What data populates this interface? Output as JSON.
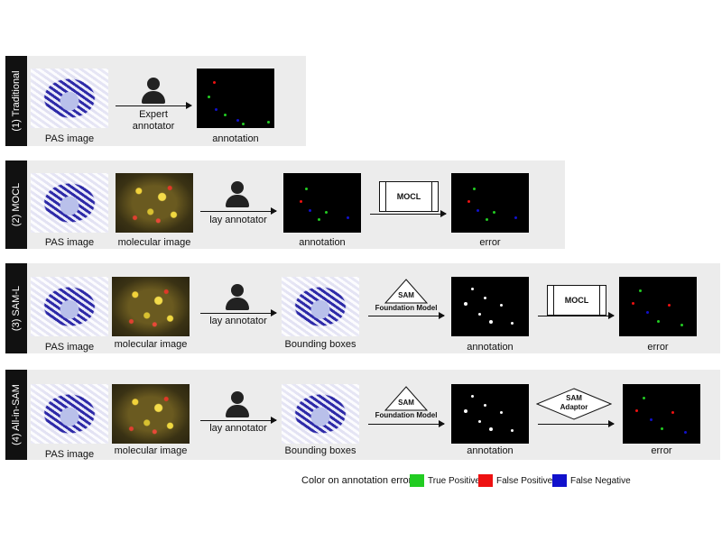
{
  "rows": [
    {
      "label": "(1) Traditional"
    },
    {
      "label": "(2) MOCL"
    },
    {
      "label": "(3) SAM-L"
    },
    {
      "label": "(4) All-in-SAM"
    }
  ],
  "captions": {
    "pas": "PAS image",
    "molecular": "molecular image",
    "annotation": "annotation",
    "error": "error",
    "bboxes": "Bounding boxes",
    "expert_line1": "Expert",
    "expert_line2": "annotator",
    "lay": "lay annotator"
  },
  "boxes": {
    "mocl": "MOCL",
    "sam": "SAM",
    "foundation": "Foundation Model",
    "sam_adaptor_1": "SAM",
    "sam_adaptor_2": "Adaptor"
  },
  "legend": {
    "title": "Color on annotation error:",
    "items": [
      {
        "label": "True Positive",
        "color": "#22cc22"
      },
      {
        "label": "False Positive",
        "color": "#ee1111"
      },
      {
        "label": "False Negative",
        "color": "#1111cc"
      }
    ]
  }
}
